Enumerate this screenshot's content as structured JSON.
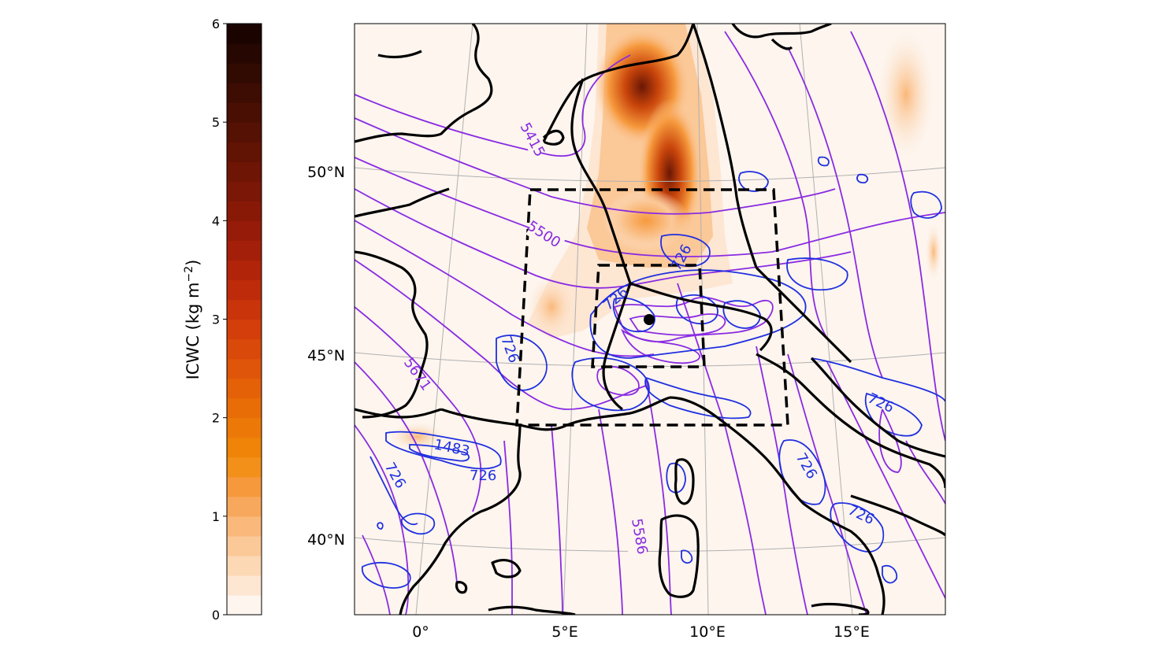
{
  "colorbar": {
    "label": "ICWC (kg m",
    "label_exp": "−2",
    "label_close": ")",
    "ticks": [
      "0",
      "1",
      "2",
      "3",
      "4",
      "5",
      "6"
    ],
    "colors": [
      "#fdf5ee",
      "#fde6d2",
      "#fcd8b5",
      "#fbc898",
      "#fab87a",
      "#f8a85c",
      "#f6993d",
      "#f3901a",
      "#ef8408",
      "#ec7907",
      "#e86d07",
      "#e46108",
      "#df5509",
      "#d9490a",
      "#d33e0b",
      "#c9340b",
      "#bd2b0b",
      "#b1240a",
      "#a41f09",
      "#961b08",
      "#891907",
      "#7b1706",
      "#6e1505",
      "#611304",
      "#551103",
      "#490f02",
      "#3d0c02",
      "#310a01",
      "#260701",
      "#1b0400"
    ]
  },
  "map": {
    "lat_labels": [
      "50°N",
      "45°N",
      "40°N"
    ],
    "lon_labels": [
      "0°",
      "5°E",
      "10°E",
      "15°E"
    ],
    "purple_contour_labels": [
      "5415",
      "5500",
      "5671",
      "5586"
    ],
    "blue_contour_labels": [
      "726",
      "726",
      "726",
      "726",
      "726",
      "726",
      "726",
      "726",
      "1483"
    ]
  },
  "colors": {
    "background": "#fdf5ee",
    "purple": "#8a2be2",
    "blue": "#1f2fe0",
    "coast": "#000000",
    "grid": "#b0b0b0"
  }
}
